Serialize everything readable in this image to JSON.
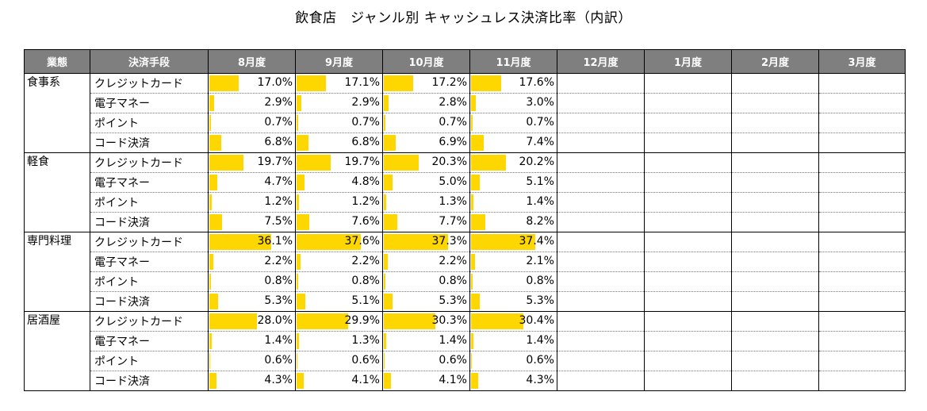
{
  "title": "飲食店　ジャンル別 キャッシュレス決済比率（内訳）",
  "colors": {
    "header_bg": "#7f7f7f",
    "bar": "#ffd700"
  },
  "chart_data": {
    "type": "table",
    "title": "飲食店　ジャンル別 キャッシュレス決済比率（内訳）",
    "columns": [
      "業態",
      "決済手段",
      "8月度",
      "9月度",
      "10月度",
      "11月度",
      "12月度",
      "1月度",
      "2月度",
      "3月度"
    ],
    "bar_max": 50,
    "groups": [
      {
        "name": "食事系",
        "rows": [
          {
            "method": "クレジットカード",
            "values": [
              17.0,
              17.1,
              17.2,
              17.6
            ]
          },
          {
            "method": "電子マネー",
            "values": [
              2.9,
              2.9,
              2.8,
              3.0
            ]
          },
          {
            "method": "ポイント",
            "values": [
              0.7,
              0.7,
              0.7,
              0.7
            ]
          },
          {
            "method": "コード決済",
            "values": [
              6.8,
              6.8,
              6.9,
              7.4
            ]
          }
        ]
      },
      {
        "name": "軽食",
        "rows": [
          {
            "method": "クレジットカード",
            "values": [
              19.7,
              19.7,
              20.3,
              20.2
            ]
          },
          {
            "method": "電子マネー",
            "values": [
              4.7,
              4.8,
              5.0,
              5.1
            ]
          },
          {
            "method": "ポイント",
            "values": [
              1.2,
              1.2,
              1.3,
              1.4
            ]
          },
          {
            "method": "コード決済",
            "values": [
              7.5,
              7.6,
              7.7,
              8.2
            ]
          }
        ]
      },
      {
        "name": "専門料理",
        "rows": [
          {
            "method": "クレジットカード",
            "values": [
              36.1,
              37.6,
              37.3,
              37.4
            ]
          },
          {
            "method": "電子マネー",
            "values": [
              2.2,
              2.2,
              2.2,
              2.1
            ]
          },
          {
            "method": "ポイント",
            "values": [
              0.8,
              0.8,
              0.8,
              0.8
            ]
          },
          {
            "method": "コード決済",
            "values": [
              5.3,
              5.1,
              5.3,
              5.3
            ]
          }
        ]
      },
      {
        "name": "居酒屋",
        "rows": [
          {
            "method": "クレジットカード",
            "values": [
              28.0,
              29.9,
              30.3,
              30.4
            ]
          },
          {
            "method": "電子マネー",
            "values": [
              1.4,
              1.3,
              1.4,
              1.4
            ]
          },
          {
            "method": "ポイント",
            "values": [
              0.6,
              0.6,
              0.6,
              0.6
            ]
          },
          {
            "method": "コード決済",
            "values": [
              4.3,
              4.1,
              4.1,
              4.3
            ]
          }
        ]
      }
    ]
  }
}
